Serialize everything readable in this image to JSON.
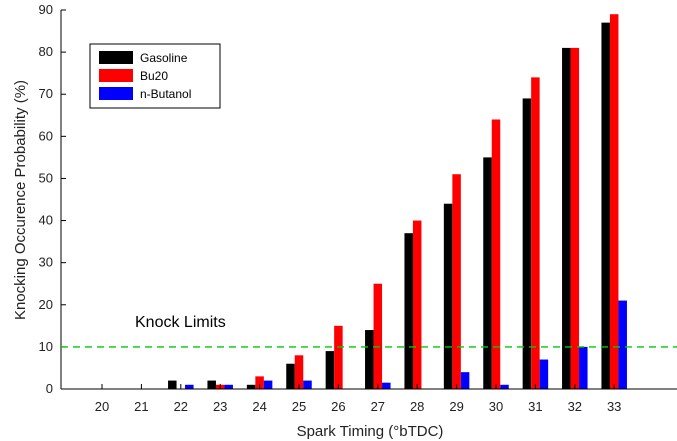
{
  "chart_data": {
    "type": "bar",
    "title": "",
    "xlabel": "Spark Timing (°bTDC)",
    "ylabel": "Knocking Occurence Probability (%)",
    "ylim": [
      0,
      90
    ],
    "yticks": [
      0,
      10,
      20,
      30,
      40,
      50,
      60,
      70,
      80,
      90
    ],
    "categories": [
      "20",
      "21",
      "22",
      "23",
      "24",
      "25",
      "26",
      "27",
      "28",
      "29",
      "30",
      "31",
      "32",
      "33"
    ],
    "series": [
      {
        "name": "Gasoline",
        "color": "#000000",
        "values": [
          0,
          0,
          2,
          2,
          1,
          6,
          9,
          14,
          37,
          44,
          55,
          69,
          81,
          87
        ]
      },
      {
        "name": "Bu20",
        "color": "#ff0000",
        "values": [
          0,
          0,
          0,
          1,
          3,
          8,
          15,
          25,
          40,
          51,
          64,
          74,
          81,
          89
        ]
      },
      {
        "name": "n-Butanol",
        "color": "#0000ff",
        "values": [
          0,
          0,
          1,
          1,
          2,
          2,
          0,
          1.5,
          0,
          4,
          1,
          7,
          10,
          21
        ]
      }
    ],
    "reference_line": {
      "value": 10,
      "color": "#00cc00",
      "style": "dashed"
    },
    "annotation": "Knock Limits",
    "legend_position": "top-left",
    "grid": false
  }
}
